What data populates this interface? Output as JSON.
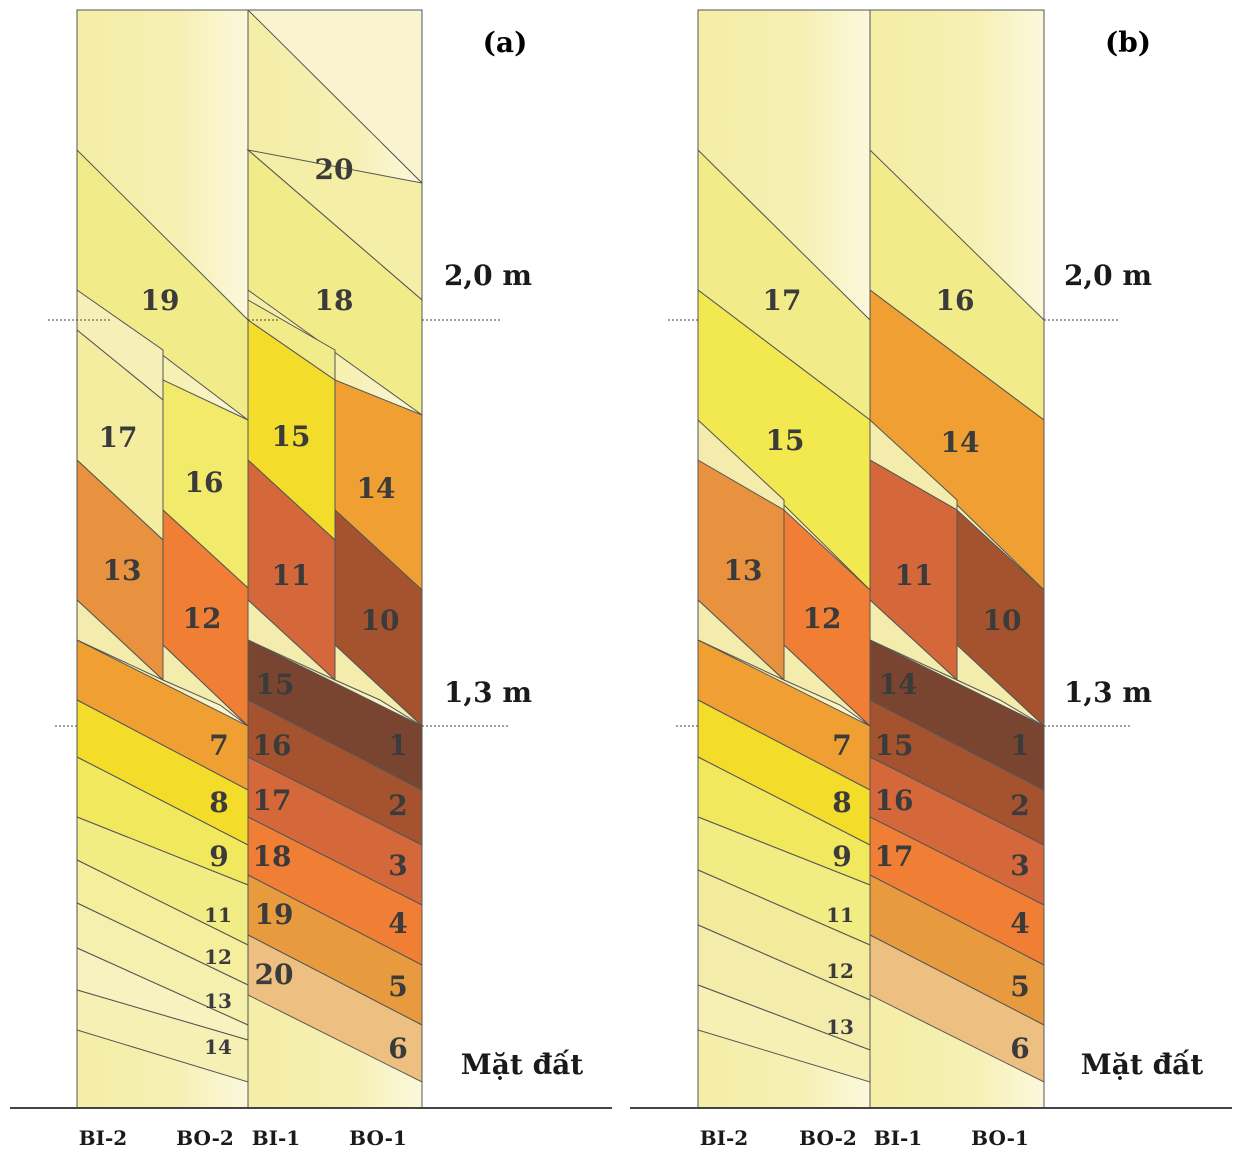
{
  "panels": [
    {
      "id": "a",
      "label": "(a)",
      "level_high": "2,0 m",
      "level_low": "1,3 m",
      "ground": "Mặt đất",
      "columns": [
        "BI-2",
        "BO-2",
        "BI-1",
        "BO-1"
      ],
      "numbers": [
        "20",
        "19",
        "18",
        "17",
        "16",
        "15",
        "14",
        "13",
        "12",
        "11",
        "10",
        "15",
        "1",
        "16",
        "7",
        "2",
        "17",
        "8",
        "3",
        "18",
        "9",
        "4",
        "19",
        "11",
        "20",
        "12",
        "5",
        "13",
        "6",
        "14"
      ]
    },
    {
      "id": "b",
      "label": "(b)",
      "level_high": "2,0 m",
      "level_low": "1,3 m",
      "ground": "Mặt đất",
      "columns": [
        "BI-2",
        "BO-2",
        "BI-1",
        "BO-1"
      ],
      "numbers": [
        "17",
        "16",
        "15",
        "14",
        "13",
        "12",
        "11",
        "10",
        "14",
        "1",
        "15",
        "7",
        "2",
        "16",
        "8",
        "3",
        "17",
        "9",
        "4",
        "11",
        "5",
        "12",
        "6",
        "13"
      ]
    }
  ],
  "colors": {
    "pale": "#f7f0b8",
    "light_yellow": "#f2eb8a",
    "yellow": "#f4dc2a",
    "light_orange": "#e89a3f",
    "orange": "#f07f35",
    "rust": "#d4683a",
    "brown": "#a5532f",
    "dark_brown": "#7a4530",
    "tan": "#edbf80",
    "cream": "#f2efb6"
  }
}
